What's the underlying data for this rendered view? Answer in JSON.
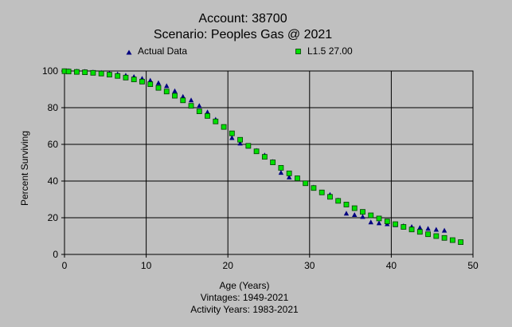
{
  "chart_data": {
    "type": "scatter",
    "title": "Account: 38700",
    "subtitle": "Scenario: Peoples Gas @ 2021",
    "xlabel": "Age (Years)",
    "ylabel": "Percent Surviving",
    "footer": [
      "Vintages: 1949-2021",
      "Activity Years: 1983-2021"
    ],
    "xlim": [
      0,
      50
    ],
    "ylim": [
      0,
      100
    ],
    "xticks": [
      0,
      10,
      20,
      30,
      40,
      50
    ],
    "yticks": [
      0,
      20,
      40,
      60,
      80,
      100
    ],
    "grid": true,
    "legend_position": "top",
    "series": [
      {
        "name": "Actual Data",
        "marker": "triangle",
        "color": "#000080",
        "x": [
          0,
          0.5,
          1.5,
          2.5,
          3.5,
          4.5,
          5.5,
          6.5,
          7.5,
          8.5,
          9.5,
          10.5,
          11.5,
          12.5,
          13.5,
          14.5,
          15.5,
          16.5,
          17.5,
          18.5,
          19.5,
          20.5,
          21.5,
          22.5,
          23.5,
          24.5,
          25.5,
          26.5,
          27.5,
          28.5,
          29.5,
          30.5,
          31.5,
          32.5,
          33.5,
          34.5,
          35.5,
          36.5,
          37.5,
          38.5,
          39.5,
          40.5,
          41.5,
          42.5,
          43.5,
          44.5,
          45.5,
          46.5
        ],
        "y": [
          100,
          100,
          99.8,
          99.6,
          99.3,
          99,
          98.6,
          98.2,
          97.5,
          96.8,
          95.8,
          94.8,
          93.4,
          91.8,
          89,
          86,
          84,
          81,
          77.5,
          73.5,
          69.5,
          63.5,
          60.5,
          58.8,
          56.5,
          54,
          50.5,
          44.5,
          42,
          41.5,
          38.5,
          36.5,
          33.8,
          32.5,
          29.5,
          22.3,
          21.5,
          20.5,
          17.5,
          17,
          16.5,
          16,
          15.5,
          15,
          14.5,
          14,
          13.5,
          13
        ]
      },
      {
        "name": "L1.5 27.00",
        "marker": "square",
        "color": "#00e000",
        "x": [
          0,
          0.5,
          1.5,
          2.5,
          3.5,
          4.5,
          5.5,
          6.5,
          7.5,
          8.5,
          9.5,
          10.5,
          11.5,
          12.5,
          13.5,
          14.5,
          15.5,
          16.5,
          17.5,
          18.5,
          19.5,
          20.5,
          21.5,
          22.5,
          23.5,
          24.5,
          25.5,
          26.5,
          27.5,
          28.5,
          29.5,
          30.5,
          31.5,
          32.5,
          33.5,
          34.5,
          35.5,
          36.5,
          37.5,
          38.5,
          39.5,
          40.5,
          41.5,
          42.5,
          43.5,
          44.5,
          45.5,
          46.5,
          47.5,
          48.5
        ],
        "y": [
          99.9,
          99.7,
          99.5,
          99.3,
          99,
          98.6,
          98,
          97.3,
          96.4,
          95.4,
          94.2,
          92.8,
          90.8,
          88.8,
          86.5,
          84,
          81,
          78,
          75.5,
          72.5,
          69.5,
          66,
          62.5,
          59.2,
          56.2,
          53.2,
          50.2,
          47.2,
          44.2,
          41.5,
          38.8,
          36.2,
          33.8,
          31.4,
          29.2,
          27.2,
          25.2,
          23.2,
          21.3,
          19.6,
          18,
          16.5,
          15,
          13.6,
          12.3,
          11,
          10,
          9,
          7.8,
          6.7
        ]
      }
    ]
  }
}
